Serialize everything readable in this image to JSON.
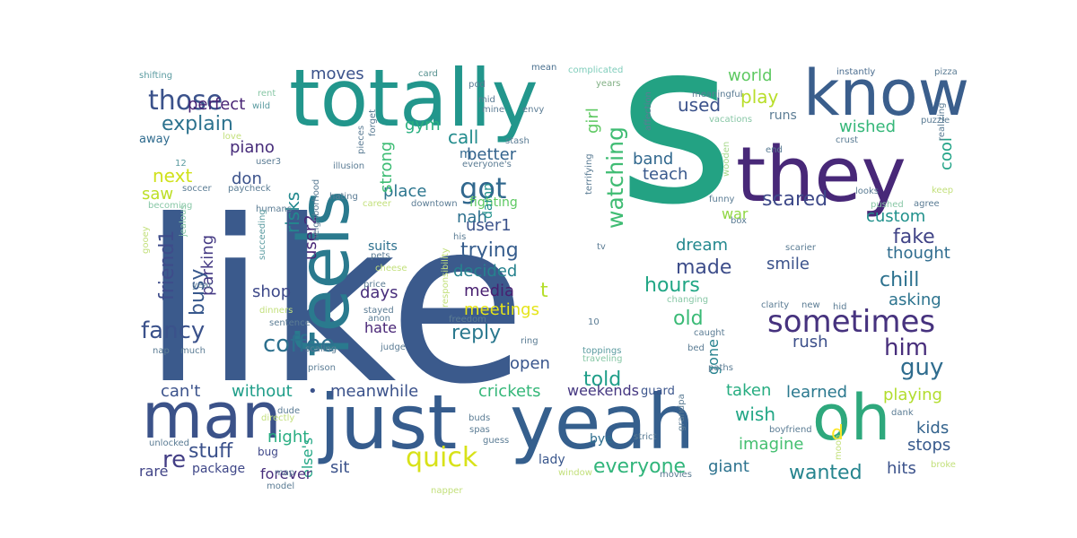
{
  "words": [
    {
      "text": "like",
      "color": "#3b5a8c"
    },
    {
      "text": "s",
      "color": "#23a283"
    },
    {
      "text": "totally",
      "color": "#22968c"
    },
    {
      "text": "they",
      "color": "#482878"
    },
    {
      "text": "know",
      "color": "#3a5e8c"
    },
    {
      "text": "feels",
      "color": "#2a7a8e"
    },
    {
      "text": "yeah",
      "color": "#355f8d"
    },
    {
      "text": "just",
      "color": "#365c8d"
    },
    {
      "text": "man",
      "color": "#3b5289"
    },
    {
      "text": "oh",
      "color": "#2ea87c"
    },
    {
      "text": "sometimes",
      "color": "#46327e"
    },
    {
      "text": "coffee",
      "color": "#2d708e"
    },
    {
      "text": "those",
      "color": "#3b528b"
    },
    {
      "text": "explain",
      "color": "#2c728e"
    },
    {
      "text": "got",
      "color": "#31688e"
    },
    {
      "text": "watching",
      "color": "#3fbc73"
    },
    {
      "text": "scared",
      "color": "#3e4989"
    },
    {
      "text": "him",
      "color": "#472d7b"
    },
    {
      "text": "guy",
      "color": "#2f6c8e"
    },
    {
      "text": "quick",
      "color": "#d8e219"
    },
    {
      "text": "wanted",
      "color": "#25848e"
    },
    {
      "text": "everyone",
      "color": "#31b57b"
    },
    {
      "text": "trying",
      "color": "#365d8d"
    },
    {
      "text": "reply",
      "color": "#2a788e"
    },
    {
      "text": "fancy",
      "color": "#3b528b"
    },
    {
      "text": "friend1",
      "color": "#3e4c8a"
    },
    {
      "text": "busy",
      "color": "#38588c"
    },
    {
      "text": "stuff",
      "color": "#3b518b"
    },
    {
      "text": "re",
      "color": "#433e85"
    },
    {
      "text": "d",
      "color": "#fde725"
    },
    {
      "text": "t",
      "color": "#b5de2b"
    },
    {
      "text": "made",
      "color": "#3d4d8a"
    },
    {
      "text": "hours",
      "color": "#21a685"
    },
    {
      "text": "old",
      "color": "#3aba76"
    },
    {
      "text": "used",
      "color": "#3b528b"
    },
    {
      "text": "play",
      "color": "#b8de29"
    },
    {
      "text": "world",
      "color": "#5ec962"
    },
    {
      "text": "wished",
      "color": "#35b779"
    },
    {
      "text": "cool",
      "color": "#20a386"
    },
    {
      "text": "chill",
      "color": "#2c718e"
    },
    {
      "text": "fake",
      "color": "#414487"
    },
    {
      "text": "thought",
      "color": "#2f6c8e"
    },
    {
      "text": "asking",
      "color": "#2c738e"
    },
    {
      "text": "custom",
      "color": "#21918c"
    },
    {
      "text": "perfect",
      "color": "#482475"
    },
    {
      "text": "moves",
      "color": "#3b528b"
    },
    {
      "text": "next",
      "color": "#d0e11c"
    },
    {
      "text": "saw",
      "color": "#bddf26"
    },
    {
      "text": "piano",
      "color": "#472c7a"
    },
    {
      "text": "don",
      "color": "#3b528b"
    },
    {
      "text": "parking",
      "color": "#443983"
    },
    {
      "text": "risks",
      "color": "#23898e"
    },
    {
      "text": "user2",
      "color": "#482677"
    },
    {
      "text": "shop",
      "color": "#3e4989"
    },
    {
      "text": "days",
      "color": "#472d7b"
    },
    {
      "text": "media",
      "color": "#481f70"
    },
    {
      "text": "meetings",
      "color": "#e5e419"
    },
    {
      "text": "decided",
      "color": "#26828e"
    },
    {
      "text": "place",
      "color": "#2b758e"
    },
    {
      "text": "strong",
      "color": "#3dbc74"
    },
    {
      "text": "gym",
      "color": "#29af7f"
    },
    {
      "text": "call",
      "color": "#228c8d"
    },
    {
      "text": "better",
      "color": "#33638d"
    },
    {
      "text": "nah",
      "color": "#2d708e"
    },
    {
      "text": "user1",
      "color": "#3b528b"
    },
    {
      "text": "fighting",
      "color": "#5ec962"
    },
    {
      "text": "m",
      "color": "#31688e"
    },
    {
      "text": "damn",
      "color": "#21918c"
    },
    {
      "text": "girl",
      "color": "#5ec962"
    },
    {
      "text": "band",
      "color": "#31688e"
    },
    {
      "text": "teach",
      "color": "#38588c"
    },
    {
      "text": "war",
      "color": "#90d743"
    },
    {
      "text": "dream",
      "color": "#23888e"
    },
    {
      "text": "smile",
      "color": "#3b528b"
    },
    {
      "text": "hate",
      "color": "#482576"
    },
    {
      "text": "rush",
      "color": "#3c4f8a"
    },
    {
      "text": "gone",
      "color": "#26828e"
    },
    {
      "text": "told",
      "color": "#1f9e89"
    },
    {
      "text": "open",
      "color": "#39558c"
    },
    {
      "text": "taken",
      "color": "#27ad81"
    },
    {
      "text": "learned",
      "color": "#2a788e"
    },
    {
      "text": "playing",
      "color": "#b2dd2d"
    },
    {
      "text": "can't",
      "color": "#3b528b"
    },
    {
      "text": "without",
      "color": "#1f9e89"
    },
    {
      "text": "•",
      "color": "#3b528b"
    },
    {
      "text": "meanwhile",
      "color": "#3b528b"
    },
    {
      "text": "crickets",
      "color": "#35b779"
    },
    {
      "text": "weekends",
      "color": "#453781"
    },
    {
      "text": "wish",
      "color": "#21a685"
    },
    {
      "text": "imagine",
      "color": "#44bf70"
    },
    {
      "text": "kids",
      "color": "#33638d"
    },
    {
      "text": "stops",
      "color": "#38598c"
    },
    {
      "text": "night",
      "color": "#27ad81"
    },
    {
      "text": "else's",
      "color": "#22a785"
    },
    {
      "text": "sit",
      "color": "#3b528b"
    },
    {
      "text": "suits",
      "color": "#2d708e"
    },
    {
      "text": "forever",
      "color": "#472d7b"
    },
    {
      "text": "giant",
      "color": "#2c728e"
    },
    {
      "text": "hits",
      "color": "#3b528b"
    },
    {
      "text": "rare",
      "color": "#414487"
    },
    {
      "text": "package",
      "color": "#3f4788"
    },
    {
      "text": "bye",
      "color": "#2e6e8e"
    },
    {
      "text": "lady",
      "color": "#39568c"
    },
    {
      "text": "guard",
      "color": "#3a548c"
    },
    {
      "text": "bug",
      "color": "#3f4889"
    },
    {
      "text": "away",
      "color": "#2f6b8e"
    },
    {
      "text": "shifting",
      "color": "#5b9ba0"
    },
    {
      "text": "card",
      "color": "#56918f"
    },
    {
      "text": "mean",
      "color": "#4a708f"
    },
    {
      "text": "complicated",
      "color": "#7fcdbb"
    },
    {
      "text": "instantly",
      "color": "#4b6d8f"
    },
    {
      "text": "pizza",
      "color": "#5b7c94"
    },
    {
      "text": "rent",
      "color": "#88c7a6"
    },
    {
      "text": "wild",
      "color": "#5b9ba0"
    },
    {
      "text": "pod",
      "color": "#5b7c94"
    },
    {
      "text": "years",
      "color": "#82b085"
    },
    {
      "text": "meaningful",
      "color": "#5b7c94"
    },
    {
      "text": "mid",
      "color": "#5b7c94"
    },
    {
      "text": "mine",
      "color": "#5b7c94"
    },
    {
      "text": "envy",
      "color": "#5b7c94"
    },
    {
      "text": "affection",
      "color": "#5b7c94"
    },
    {
      "text": "vacations",
      "color": "#88c7a6"
    },
    {
      "text": "puzzle",
      "color": "#5b7c94"
    },
    {
      "text": "love",
      "color": "#c3e07c"
    },
    {
      "text": "user3",
      "color": "#5b7c94"
    },
    {
      "text": "pieces",
      "color": "#5b7c94"
    },
    {
      "text": "forget",
      "color": "#5b7c94"
    },
    {
      "text": "stash",
      "color": "#5b7c94"
    },
    {
      "text": "crust",
      "color": "#5b7c94"
    },
    {
      "text": "end",
      "color": "#5b7c94"
    },
    {
      "text": "12",
      "color": "#5b9ba0"
    },
    {
      "text": "illusion",
      "color": "#5b7c94"
    },
    {
      "text": "everyone's",
      "color": "#5b7c94"
    },
    {
      "text": "wooden",
      "color": "#a6d98b"
    },
    {
      "text": "realizing",
      "color": "#5b7c94"
    },
    {
      "text": "soccer",
      "color": "#5b7c94"
    },
    {
      "text": "paycheck",
      "color": "#5b7c94"
    },
    {
      "text": "hating",
      "color": "#5b7c94"
    },
    {
      "text": "career",
      "color": "#c3e07c"
    },
    {
      "text": "terrifying",
      "color": "#5b7c94"
    },
    {
      "text": "funny",
      "color": "#5b7c94"
    },
    {
      "text": "looks",
      "color": "#5b7c94"
    },
    {
      "text": "keep",
      "color": "#c3e07c"
    },
    {
      "text": "becoming",
      "color": "#88c7a6"
    },
    {
      "text": "pushed",
      "color": "#88c7a6"
    },
    {
      "text": "agree",
      "color": "#5b7c94"
    },
    {
      "text": "downtown",
      "color": "#5b7c94"
    },
    {
      "text": "humans",
      "color": "#5b7c94"
    },
    {
      "text": "jealous",
      "color": "#88c7a6"
    },
    {
      "text": "succeeding",
      "color": "#5b9ba0"
    },
    {
      "text": "box",
      "color": "#5b7c94"
    },
    {
      "text": "neighborhood",
      "color": "#5b7c94"
    },
    {
      "text": "gooey",
      "color": "#c3e07c"
    },
    {
      "text": "his",
      "color": "#5b7c94"
    },
    {
      "text": "tv",
      "color": "#5b7c94"
    },
    {
      "text": "scarier",
      "color": "#5b7c94"
    },
    {
      "text": "cheese",
      "color": "#c3e07c"
    },
    {
      "text": "pets",
      "color": "#5b7c94"
    },
    {
      "text": "responsibility",
      "color": "#c3e07c"
    },
    {
      "text": "changing",
      "color": "#88c7a6"
    },
    {
      "text": "clarity",
      "color": "#5b7c94"
    },
    {
      "text": "new",
      "color": "#5b7c94"
    },
    {
      "text": "hid",
      "color": "#5b7c94"
    },
    {
      "text": "year",
      "color": "#5b7c94"
    },
    {
      "text": "price",
      "color": "#5b7c94"
    },
    {
      "text": "dinners",
      "color": "#c3e07c"
    },
    {
      "text": "stayed",
      "color": "#5b7c94"
    },
    {
      "text": "sentence",
      "color": "#5b7c94"
    },
    {
      "text": "freedom",
      "color": "#5b7c94"
    },
    {
      "text": "anon",
      "color": "#5b7c94"
    },
    {
      "text": "10",
      "color": "#5b7c94"
    },
    {
      "text": "ring",
      "color": "#5b7c94"
    },
    {
      "text": "judge",
      "color": "#5b7c94"
    },
    {
      "text": "nap",
      "color": "#5b7c94"
    },
    {
      "text": "much",
      "color": "#5b7c94"
    },
    {
      "text": "scaling",
      "color": "#5b7c94"
    },
    {
      "text": "caught",
      "color": "#5b7c94"
    },
    {
      "text": "toppings",
      "color": "#5b9ba0"
    },
    {
      "text": "traveling",
      "color": "#88c7a6"
    },
    {
      "text": "bed",
      "color": "#5b7c94"
    },
    {
      "text": "paths",
      "color": "#5b7c94"
    },
    {
      "text": "prison",
      "color": "#5b7c94"
    },
    {
      "text": "dude",
      "color": "#5b7c94"
    },
    {
      "text": "buds",
      "color": "#5b7c94"
    },
    {
      "text": "grandpa",
      "color": "#5b7c94"
    },
    {
      "text": "dank",
      "color": "#5b7c94"
    },
    {
      "text": "directly",
      "color": "#c3e07c"
    },
    {
      "text": "spas",
      "color": "#5b7c94"
    },
    {
      "text": "boyfriend",
      "color": "#5b7c94"
    },
    {
      "text": "unlocked",
      "color": "#5b7c94"
    },
    {
      "text": "guess",
      "color": "#5b7c94"
    },
    {
      "text": "strict",
      "color": "#5b7c94"
    },
    {
      "text": "moon",
      "color": "#c3e07c"
    },
    {
      "text": "map",
      "color": "#5b7c94"
    },
    {
      "text": "model",
      "color": "#5b7c94"
    },
    {
      "text": "napper",
      "color": "#c3e07c"
    },
    {
      "text": "window",
      "color": "#c3e07c"
    },
    {
      "text": "movies",
      "color": "#5b7c94"
    },
    {
      "text": "broke",
      "color": "#c3e07c"
    },
    {
      "text": "runs",
      "color": "#5b7c94"
    }
  ]
}
